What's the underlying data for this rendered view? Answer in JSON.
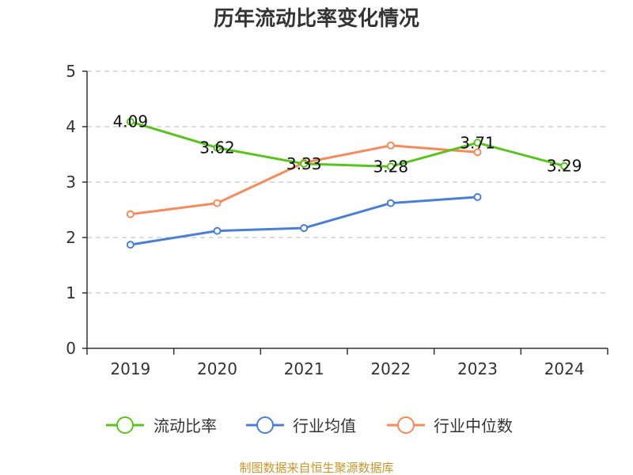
{
  "chart_data": {
    "type": "line",
    "title": "历年流动比率变化情况",
    "categories": [
      "2019",
      "2020",
      "2021",
      "2022",
      "2023",
      "2024"
    ],
    "ylim": [
      0,
      5
    ],
    "yticks": [
      0,
      1,
      2,
      3,
      4,
      5
    ],
    "grid": true,
    "legend_position": "bottom",
    "series": [
      {
        "name": "流动比率",
        "color": "#5ac31f",
        "values": [
          4.09,
          3.62,
          3.33,
          3.28,
          3.71,
          3.29
        ],
        "labels": [
          "4.09",
          "3.62",
          "3.33",
          "3.28",
          "3.71",
          "3.29"
        ]
      },
      {
        "name": "行业均值",
        "color": "#4a7fd6",
        "values": [
          1.87,
          2.12,
          2.17,
          2.62,
          2.73,
          null
        ]
      },
      {
        "name": "行业中位数",
        "color": "#f58a5b",
        "values": [
          2.42,
          2.62,
          3.35,
          3.66,
          3.54,
          null
        ]
      }
    ]
  },
  "source": "制图数据来自恒生聚源数据库"
}
